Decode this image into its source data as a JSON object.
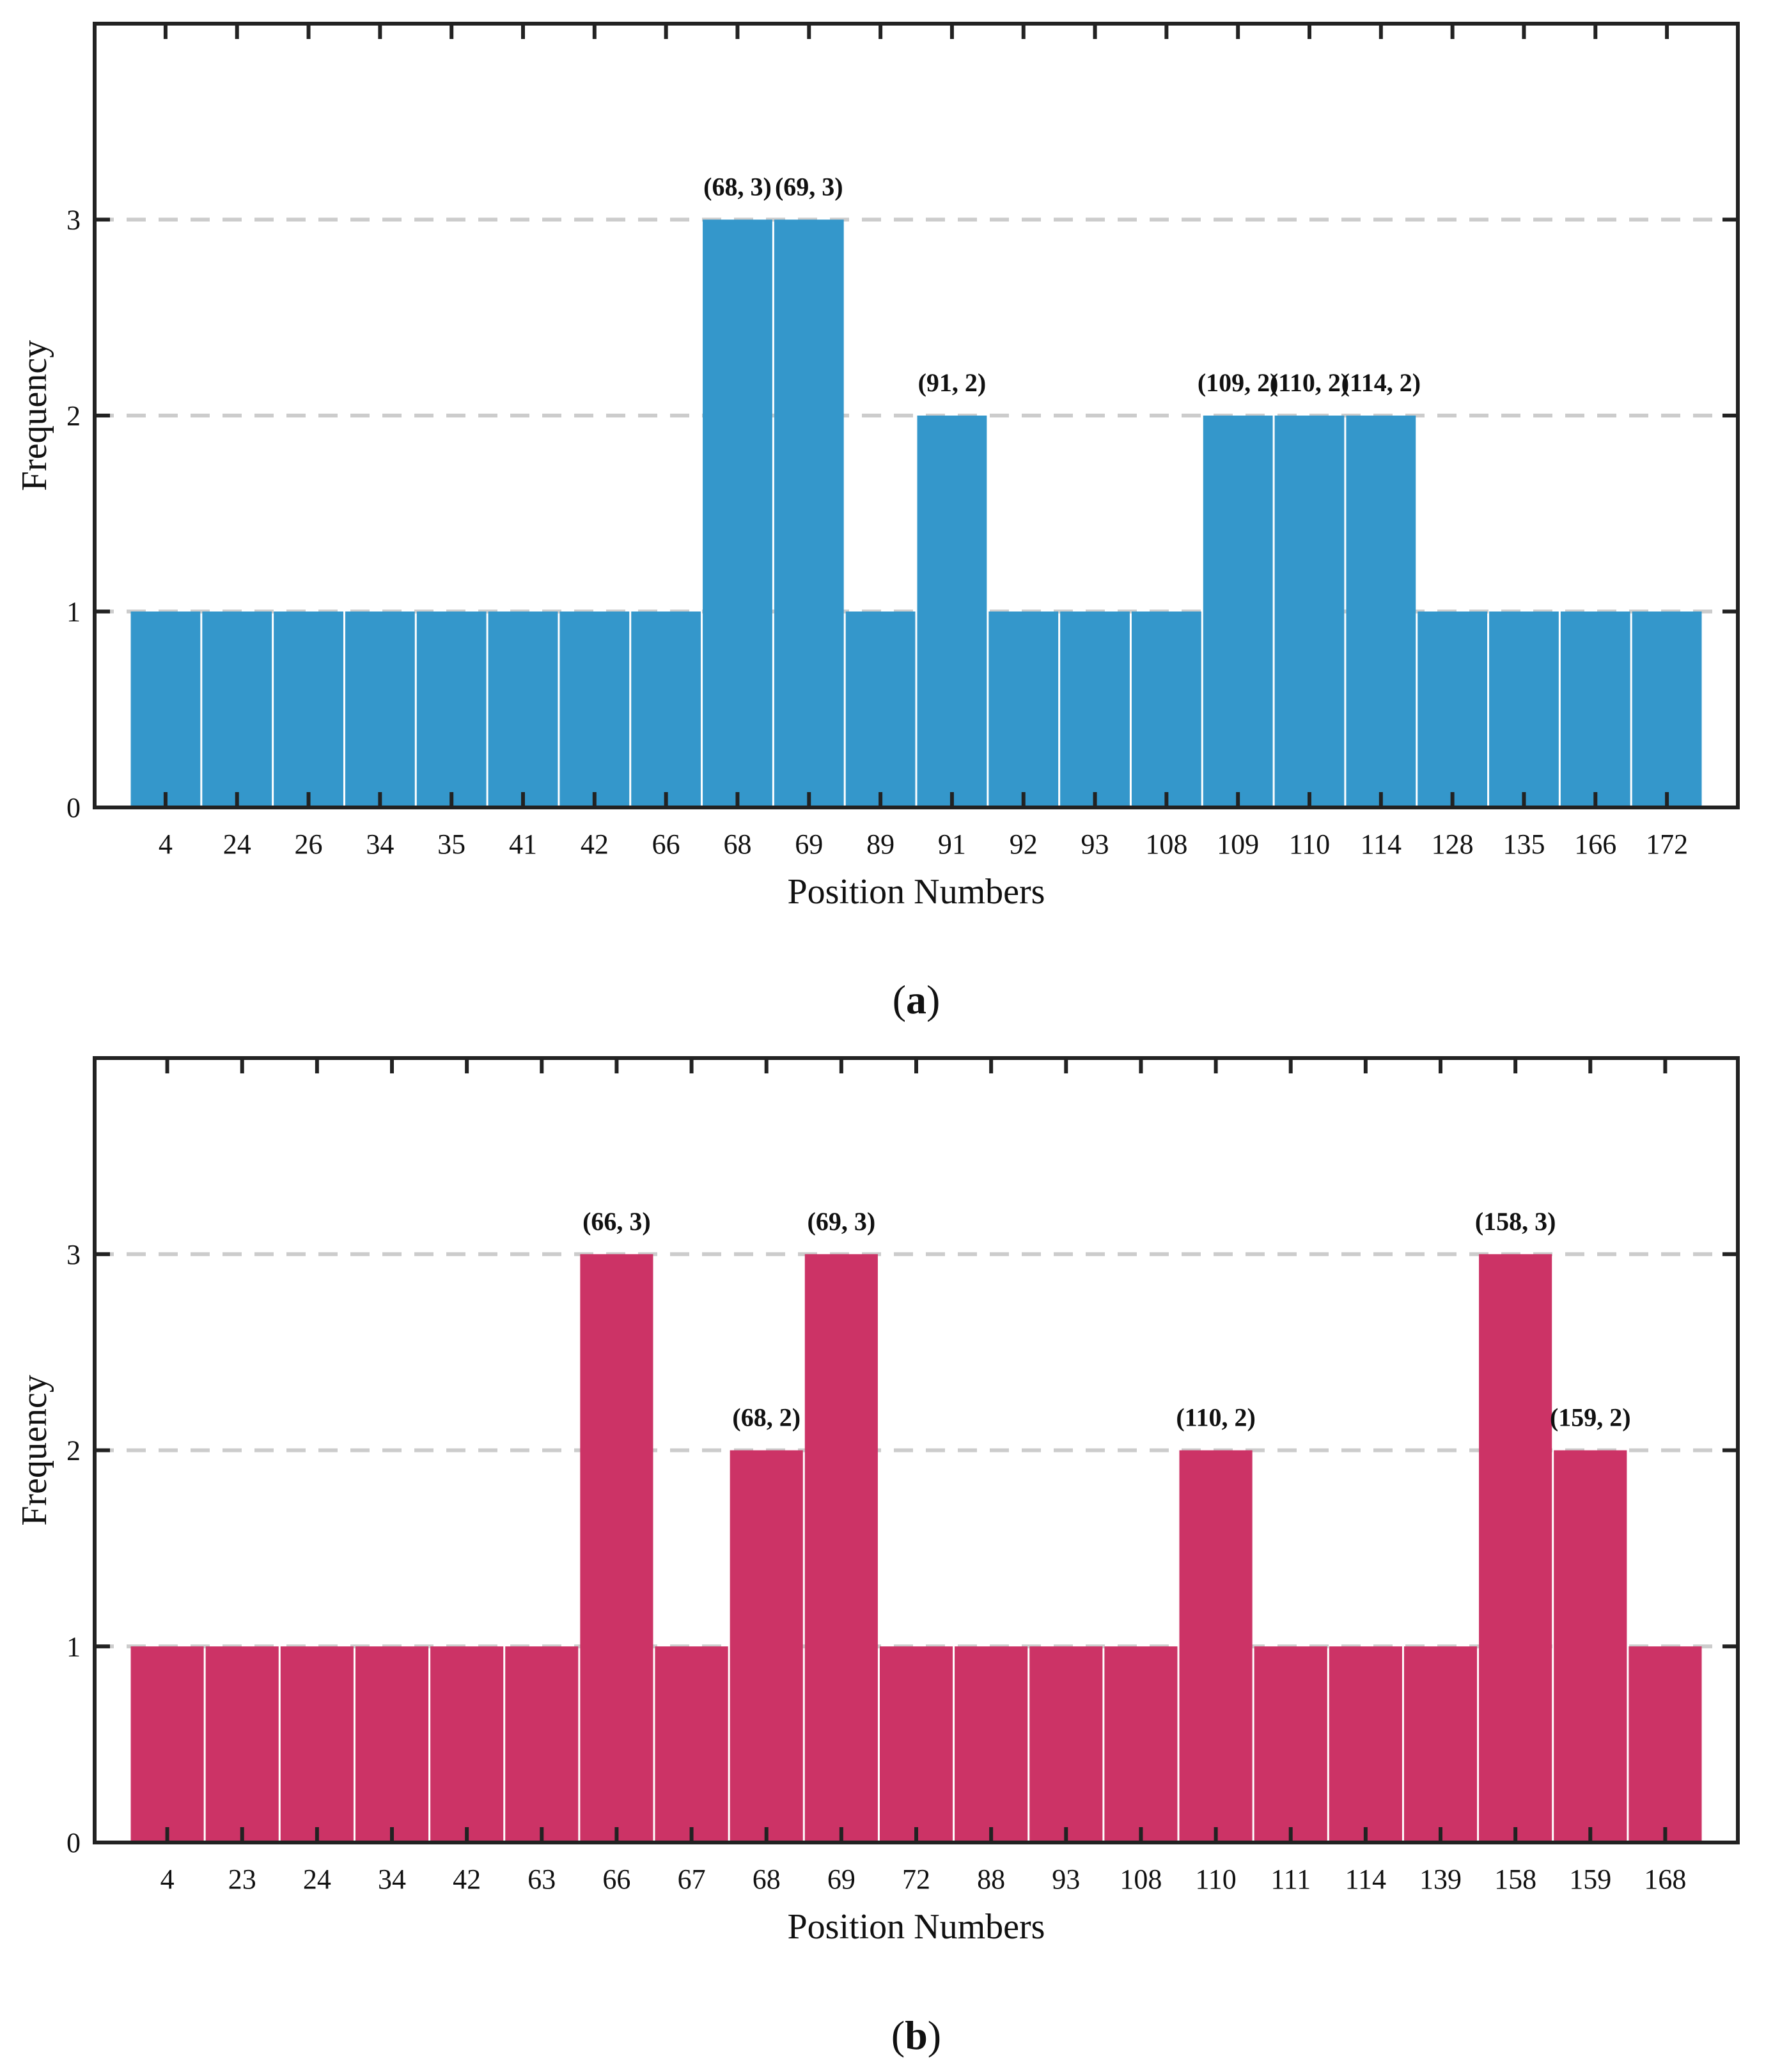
{
  "chart_data": [
    {
      "type": "bar",
      "panel": "a",
      "color": "#3497CB",
      "categories": [
        "4",
        "24",
        "26",
        "34",
        "35",
        "41",
        "42",
        "66",
        "68",
        "69",
        "89",
        "91",
        "92",
        "93",
        "108",
        "109",
        "110",
        "114",
        "128",
        "135",
        "166",
        "172"
      ],
      "values": [
        1,
        1,
        1,
        1,
        1,
        1,
        1,
        1,
        3,
        3,
        1,
        2,
        1,
        1,
        1,
        2,
        2,
        2,
        1,
        1,
        1,
        1
      ],
      "annotations": [
        {
          "category": "68",
          "text": "(68, 3)"
        },
        {
          "category": "69",
          "text": "(69, 3)"
        },
        {
          "category": "91",
          "text": "(91, 2)"
        },
        {
          "category": "109",
          "text": "(109, 2)"
        },
        {
          "category": "110",
          "text": "(110, 2)"
        },
        {
          "category": "114",
          "text": "(114, 2)"
        }
      ],
      "title": "",
      "xlabel": "Position Numbers",
      "ylabel": "Frequency",
      "ylim": [
        0,
        4
      ],
      "yticks": [
        0,
        1,
        2,
        3
      ],
      "grid": "dashed horizontal at y ticks",
      "caption_open": "(",
      "caption_letter": "a",
      "caption_close": ")"
    },
    {
      "type": "bar",
      "panel": "b",
      "color": "#CC3366",
      "categories": [
        "4",
        "23",
        "24",
        "34",
        "42",
        "63",
        "66",
        "67",
        "68",
        "69",
        "72",
        "88",
        "93",
        "108",
        "110",
        "111",
        "114",
        "139",
        "158",
        "159",
        "168"
      ],
      "values": [
        1,
        1,
        1,
        1,
        1,
        1,
        3,
        1,
        2,
        3,
        1,
        1,
        1,
        1,
        2,
        1,
        1,
        1,
        3,
        2,
        1
      ],
      "annotations": [
        {
          "category": "66",
          "text": "(66, 3)"
        },
        {
          "category": "68",
          "text": "(68, 2)"
        },
        {
          "category": "69",
          "text": "(69, 3)"
        },
        {
          "category": "110",
          "text": "(110, 2)"
        },
        {
          "category": "158",
          "text": "(158, 3)"
        },
        {
          "category": "159",
          "text": "(159, 2)"
        }
      ],
      "title": "",
      "xlabel": "Position Numbers",
      "ylabel": "Frequency",
      "ylim": [
        0,
        4
      ],
      "yticks": [
        0,
        1,
        2,
        3
      ],
      "grid": "dashed horizontal at y ticks",
      "caption_open": "(",
      "caption_letter": "b",
      "caption_close": ")"
    }
  ]
}
